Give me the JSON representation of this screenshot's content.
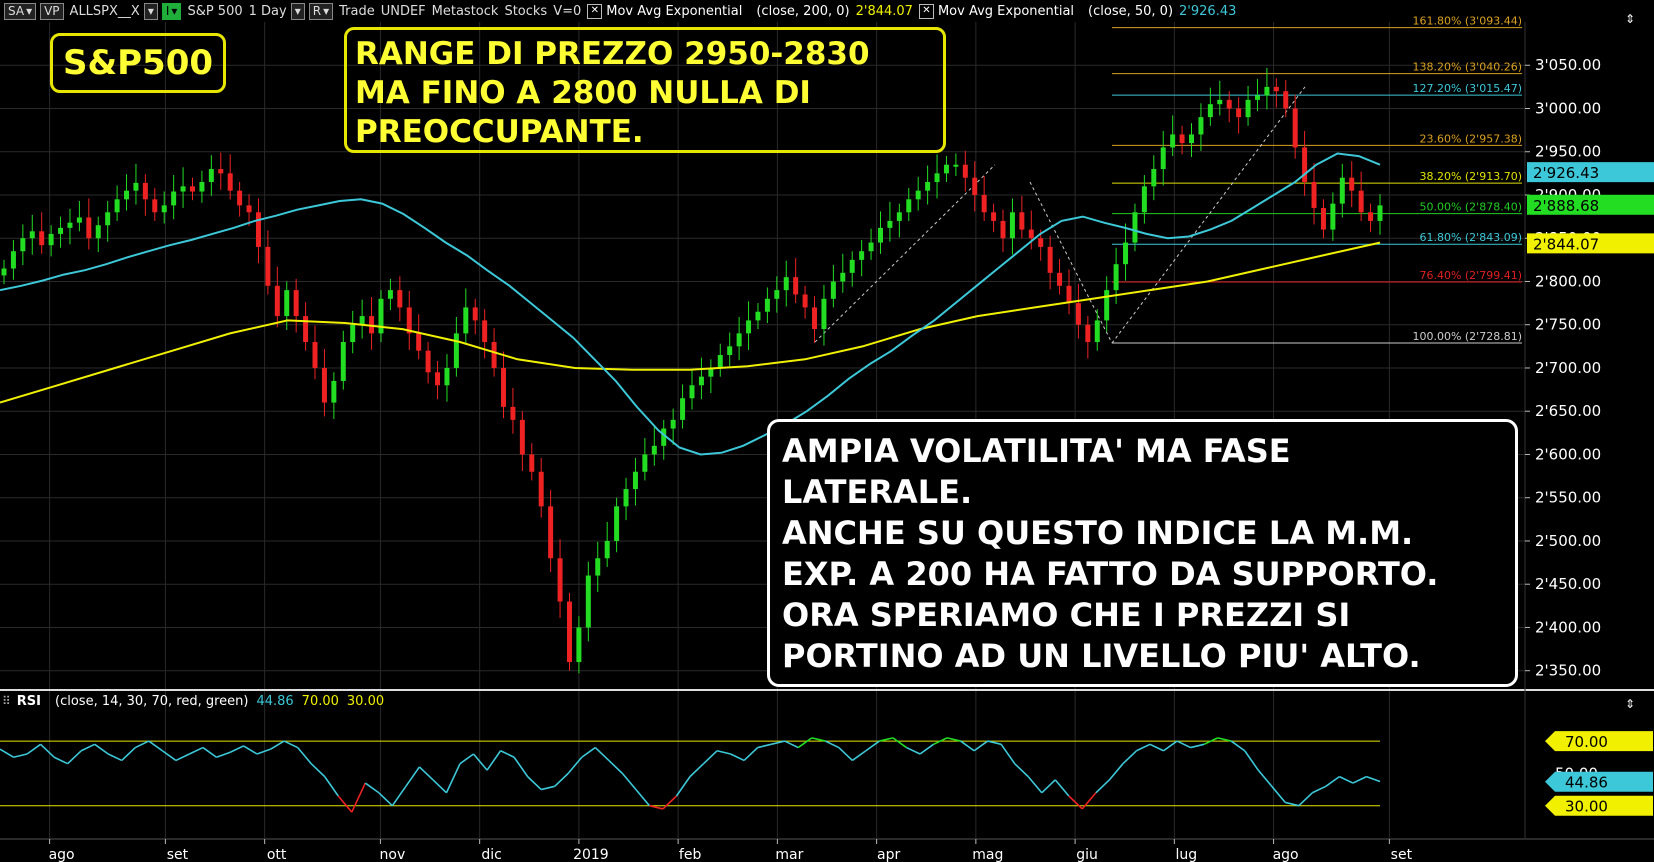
{
  "toolbar": {
    "sa_label": "SA",
    "vp_label": "VP",
    "symbol": "ALLSPX__X",
    "i_label": "I",
    "name": "S&P 500",
    "interval": "1 Day",
    "r_label": "R",
    "mode": "Trade",
    "undef": "UNDEF",
    "source": "Metastock",
    "type": "Stocks",
    "volume": "V=0",
    "ema200_label": "Mov Avg Exponential",
    "ema200_params": "(close, 200, 0)",
    "ema200_value": "2'844.07",
    "ema50_label": "Mov Avg Exponential",
    "ema50_params": "(close, 50, 0)",
    "ema50_value": "2'926.43"
  },
  "annotations": {
    "title": "S&P500",
    "range_lines": [
      "RANGE DI PREZZO 2950-2830",
      "MA FINO A 2800 NULLA DI",
      "PREOCCUPANTE."
    ],
    "volatility_lines": [
      "AMPIA VOLATILITA' MA FASE",
      "LATERALE.",
      "ANCHE SU QUESTO INDICE LA M.M.",
      "EXP. A 200 HA FATTO DA SUPPORTO.",
      "ORA SPERIAMO CHE I PREZZI SI",
      "PORTINO AD UN LIVELLO PIU' ALTO."
    ]
  },
  "rsi_header": {
    "label": "RSI",
    "params": "(close, 14, 30, 70, red, green)",
    "value": "44.86",
    "upper": "70.00",
    "lower": "30.00"
  },
  "colors": {
    "up": "#22dd22",
    "down": "#ee2222",
    "ema50": "#3cc8d8",
    "ema200": "#f0f000",
    "rsi": "#3cc8d8",
    "grid": "#2a2a2a",
    "fib": "#d9a020",
    "fib_127": "#3cc8d8",
    "fib_382": "#e0e000",
    "fib_500": "#22cc22",
    "fib_618": "#3cc8d8",
    "fib_764": "#e02020",
    "fib_100": "#cccccc"
  },
  "chart_data": {
    "type": "candlestick",
    "title": "S&P 500 1 Day",
    "price_axis": {
      "ticks": [
        "3'050.00",
        "3'000.00",
        "2'950.00",
        "2'900.00",
        "2'850.00",
        "2'800.00",
        "2'750.00",
        "2'700.00",
        "2'650.00",
        "2'600.00",
        "2'550.00",
        "2'500.00",
        "2'450.00",
        "2'400.00",
        "2'350.00"
      ],
      "tick_values": [
        3050,
        3000,
        2950,
        2900,
        2850,
        2800,
        2750,
        2700,
        2650,
        2600,
        2550,
        2500,
        2450,
        2400,
        2350
      ],
      "ylim": [
        2330,
        3100
      ]
    },
    "time_axis": {
      "labels": [
        "ago",
        "set",
        "ott",
        "nov",
        "dic",
        "2019",
        "feb",
        "mar",
        "apr",
        "mag",
        "giu",
        "lug",
        "ago",
        "set"
      ],
      "positions": [
        0.03,
        0.1,
        0.16,
        0.23,
        0.29,
        0.35,
        0.41,
        0.47,
        0.53,
        0.59,
        0.65,
        0.71,
        0.77,
        0.84
      ]
    },
    "price_series": [
      2815,
      2835,
      2850,
      2858,
      2842,
      2855,
      2862,
      2868,
      2874,
      2850,
      2865,
      2880,
      2895,
      2905,
      2914,
      2895,
      2880,
      2888,
      2904,
      2910,
      2904,
      2915,
      2930,
      2925,
      2905,
      2888,
      2880,
      2840,
      2795,
      2760,
      2790,
      2760,
      2730,
      2700,
      2660,
      2685,
      2730,
      2750,
      2760,
      2740,
      2780,
      2790,
      2770,
      2740,
      2720,
      2695,
      2680,
      2700,
      2740,
      2770,
      2755,
      2730,
      2700,
      2655,
      2640,
      2600,
      2580,
      2540,
      2480,
      2430,
      2360,
      2400,
      2460,
      2480,
      2500,
      2540,
      2560,
      2580,
      2600,
      2610,
      2630,
      2640,
      2665,
      2680,
      2690,
      2700,
      2715,
      2725,
      2740,
      2755,
      2765,
      2780,
      2790,
      2805,
      2785,
      2770,
      2745,
      2780,
      2800,
      2810,
      2825,
      2835,
      2845,
      2862,
      2870,
      2880,
      2895,
      2905,
      2915,
      2925,
      2935,
      2935,
      2920,
      2900,
      2880,
      2870,
      2850,
      2880,
      2860,
      2850,
      2840,
      2810,
      2795,
      2775,
      2750,
      2730,
      2755,
      2790,
      2820,
      2845,
      2880,
      2910,
      2930,
      2955,
      2970,
      2960,
      2970,
      2990,
      3005,
      3010,
      3000,
      2990,
      3010,
      3015,
      3025,
      3020,
      3000,
      2955,
      2915,
      2885,
      2860,
      2890,
      2920,
      2905,
      2880,
      2870,
      2888
    ],
    "ema50": [
      2790,
      2795,
      2801,
      2808,
      2813,
      2820,
      2828,
      2835,
      2842,
      2848,
      2855,
      2862,
      2870,
      2876,
      2883,
      2888,
      2893,
      2895,
      2890,
      2878,
      2862,
      2845,
      2830,
      2812,
      2795,
      2775,
      2755,
      2735,
      2710,
      2685,
      2655,
      2628,
      2608,
      2600,
      2602,
      2610,
      2622,
      2635,
      2650,
      2668,
      2688,
      2705,
      2720,
      2738,
      2755,
      2775,
      2795,
      2815,
      2835,
      2855,
      2870,
      2875,
      2868,
      2862,
      2855,
      2850,
      2852,
      2860,
      2870,
      2885,
      2900,
      2915,
      2935,
      2948,
      2945,
      2935
    ],
    "ema200": [
      2660,
      2680,
      2700,
      2720,
      2740,
      2755,
      2752,
      2745,
      2730,
      2710,
      2700,
      2698,
      2698,
      2702,
      2710,
      2725,
      2745,
      2760,
      2770,
      2780,
      2790,
      2800,
      2815,
      2830,
      2845
    ],
    "rsi_series": [
      65,
      60,
      62,
      68,
      60,
      56,
      64,
      68,
      62,
      58,
      66,
      70,
      64,
      58,
      62,
      66,
      60,
      63,
      67,
      62,
      65,
      70,
      66,
      56,
      48,
      36,
      26,
      44,
      38,
      30,
      42,
      54,
      46,
      38,
      56,
      62,
      52,
      64,
      60,
      48,
      40,
      42,
      50,
      60,
      66,
      58,
      50,
      40,
      30,
      28,
      36,
      48,
      56,
      64,
      62,
      58,
      66,
      68,
      70,
      66,
      72,
      70,
      66,
      58,
      64,
      70,
      72,
      66,
      62,
      68,
      72,
      70,
      64,
      70,
      68,
      56,
      48,
      38,
      46,
      36,
      28,
      38,
      46,
      56,
      64,
      68,
      64,
      70,
      66,
      68,
      72,
      70,
      64,
      52,
      42,
      32,
      30,
      38,
      42,
      48,
      44,
      48,
      45
    ],
    "rsi_axis": {
      "ticks": [
        "70.00",
        "50.00",
        "30.00"
      ],
      "tick_values": [
        70,
        50,
        30
      ],
      "ylim": [
        10,
        88
      ]
    },
    "fibonacci": [
      {
        "label": "161.80% (3'093.44)",
        "value": 3093.44
      },
      {
        "label": "138.20% (3'040.26)",
        "value": 3040.26
      },
      {
        "label": "127.20% (3'015.47)",
        "value": 3015.47
      },
      {
        "label": "23.60% (2'957.38)",
        "value": 2957.38
      },
      {
        "label": "38.20% (2'913.70)",
        "value": 2913.7
      },
      {
        "label": "50.00% (2'878.40)",
        "value": 2878.4
      },
      {
        "label": "61.80% (2'843.09)",
        "value": 2843.09
      },
      {
        "label": "76.40% (2'799.41)",
        "value": 2799.41
      },
      {
        "label": "100.00% (2'728.81)",
        "value": 2728.81
      }
    ],
    "price_badges": [
      {
        "text": "2'926.43",
        "value": 2926.43,
        "kind": "ema50"
      },
      {
        "text": "2'888.68",
        "value": 2888.68,
        "kind": "last"
      },
      {
        "text": "2'844.07",
        "value": 2844.07,
        "kind": "ema200"
      }
    ],
    "rsi_badges": [
      {
        "text": "70.00",
        "value": 70,
        "kind": "upper"
      },
      {
        "text": "44.86",
        "value": 44.86,
        "kind": "rsi"
      },
      {
        "text": "30.00",
        "value": 30,
        "kind": "lower"
      }
    ],
    "grid": true
  }
}
